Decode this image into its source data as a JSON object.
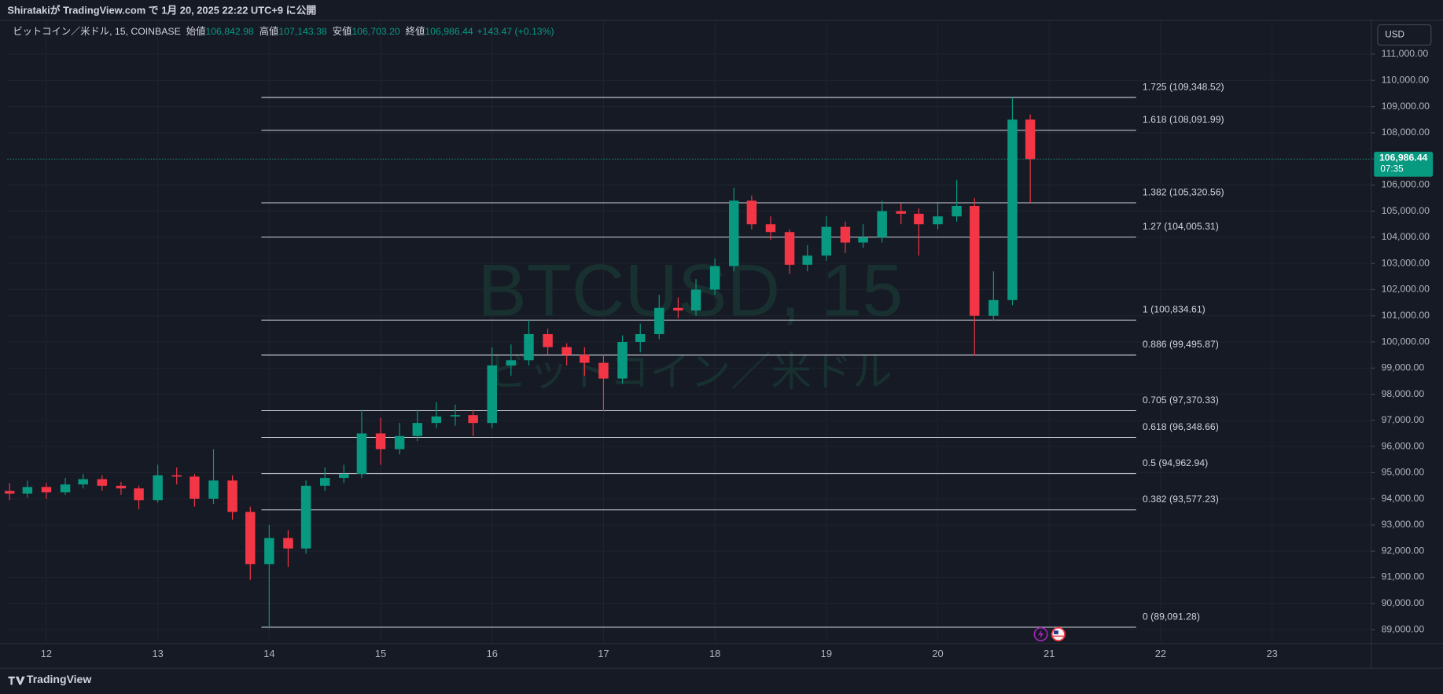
{
  "header": "Shiratakiが TradingView.com で 1月 20, 2025 22:22 UTC+9 に公開",
  "footer": "TradingView",
  "currency_button": "USD",
  "chart_data": {
    "type": "candlestick",
    "legend": {
      "symbol": "ビットコイン／米ドル, 15, COINBASE",
      "open_label": "始値",
      "open": "106,842.98",
      "high_label": "高値",
      "high": "107,143.38",
      "low_label": "安値",
      "low": "106,703.20",
      "close_label": "終値",
      "close": "106,986.44",
      "change": "+143.47 (+0.13%)"
    },
    "watermark": {
      "symbol": "BTCUSD, 15",
      "name": "ビットコイン／米ドル"
    },
    "up_color": "#089981",
    "down_color": "#f23645",
    "grid": true,
    "xlim": [
      11.65,
      23.89
    ],
    "xticks": [
      12,
      13,
      14,
      15,
      16,
      17,
      18,
      19,
      20,
      21,
      22,
      23
    ],
    "ylim": [
      88470,
      112300
    ],
    "yticks": [
      {
        "value": 89000,
        "label": "89,000.00"
      },
      {
        "value": 90000,
        "label": "90,000.00"
      },
      {
        "value": 91000,
        "label": "91,000.00"
      },
      {
        "value": 92000,
        "label": "92,000.00"
      },
      {
        "value": 93000,
        "label": "93,000.00"
      },
      {
        "value": 94000,
        "label": "94,000.00"
      },
      {
        "value": 95000,
        "label": "95,000.00"
      },
      {
        "value": 96000,
        "label": "96,000.00"
      },
      {
        "value": 97000,
        "label": "97,000.00"
      },
      {
        "value": 98000,
        "label": "98,000.00"
      },
      {
        "value": 99000,
        "label": "99,000.00"
      },
      {
        "value": 100000,
        "label": "100,000.00"
      },
      {
        "value": 101000,
        "label": "101,000.00"
      },
      {
        "value": 102000,
        "label": "102,000.00"
      },
      {
        "value": 103000,
        "label": "103,000.00"
      },
      {
        "value": 104000,
        "label": "104,000.00"
      },
      {
        "value": 105000,
        "label": "105,000.00"
      },
      {
        "value": 106000,
        "label": "106,000.00"
      },
      {
        "value": 107000,
        "label": "107,000.00"
      },
      {
        "value": 108000,
        "label": "108,000.00"
      },
      {
        "value": 109000,
        "label": "109,000.00"
      },
      {
        "value": 110000,
        "label": "110,000.00"
      },
      {
        "value": 111000,
        "label": "111,000.00"
      }
    ],
    "candles": {
      "x": [
        11.67,
        11.83,
        12,
        12.17,
        12.33,
        12.5,
        12.67,
        12.83,
        13,
        13.17,
        13.33,
        13.5,
        13.67,
        13.83,
        14,
        14.17,
        14.33,
        14.5,
        14.67,
        14.83,
        15,
        15.17,
        15.33,
        15.5,
        15.67,
        15.83,
        16,
        16.17,
        16.33,
        16.5,
        16.67,
        16.83,
        17,
        17.17,
        17.33,
        17.5,
        17.67,
        17.83,
        18,
        18.17,
        18.33,
        18.5,
        18.67,
        18.83,
        19,
        19.17,
        19.33,
        19.5,
        19.67,
        19.83,
        20,
        20.17,
        20.33,
        20.5,
        20.67,
        20.83
      ],
      "open": [
        94300,
        94200,
        94450,
        94250,
        94550,
        94750,
        94500,
        94400,
        93950,
        94900,
        94850,
        94000,
        94700,
        93500,
        91500,
        92500,
        92100,
        94500,
        94800,
        94950,
        96500,
        95900,
        96400,
        96900,
        97150,
        97200,
        96900,
        99100,
        99300,
        100300,
        99800,
        99500,
        99200,
        98600,
        100000,
        100300,
        101300,
        101200,
        102000,
        102900,
        105400,
        104500,
        104200,
        102950,
        103300,
        104400,
        103800,
        104000,
        105000,
        104900,
        104500,
        104800,
        105200,
        101000,
        101600,
        108500
      ],
      "high": [
        94600,
        94700,
        94600,
        94800,
        94950,
        94900,
        94650,
        94500,
        95300,
        95200,
        94950,
        95900,
        94900,
        93700,
        93000,
        92800,
        94700,
        95200,
        95300,
        97400,
        97100,
        96900,
        97400,
        97700,
        97600,
        97400,
        99800,
        99900,
        100850,
        100500,
        99950,
        99800,
        99500,
        100250,
        100700,
        101800,
        101700,
        102400,
        103200,
        105900,
        105600,
        104800,
        104300,
        103700,
        104800,
        104600,
        104500,
        105400,
        105300,
        105100,
        105300,
        106200,
        105500,
        102700,
        109350,
        108700
      ],
      "low": [
        93950,
        94050,
        94000,
        94150,
        94400,
        94300,
        94150,
        93600,
        93850,
        94550,
        93700,
        93800,
        93200,
        90900,
        89050,
        91400,
        91900,
        94300,
        94600,
        94800,
        95300,
        95700,
        96200,
        96700,
        96800,
        96400,
        96700,
        98700,
        99100,
        99500,
        99100,
        98700,
        97350,
        98400,
        99600,
        100100,
        100900,
        101000,
        101800,
        102700,
        104300,
        103900,
        102600,
        102700,
        103100,
        103400,
        103600,
        103800,
        104500,
        103300,
        104300,
        104600,
        99480,
        100800,
        101400,
        105320
      ],
      "close": [
        94200,
        94450,
        94250,
        94550,
        94750,
        94500,
        94400,
        93950,
        94900,
        94850,
        94000,
        94700,
        93500,
        91500,
        92500,
        92100,
        94500,
        94800,
        94950,
        96500,
        95900,
        96400,
        96900,
        97150,
        97200,
        96900,
        99100,
        99300,
        100300,
        99800,
        99500,
        99200,
        98600,
        100000,
        100300,
        101300,
        101200,
        102000,
        102900,
        105400,
        104500,
        104200,
        102950,
        103300,
        104400,
        103800,
        104000,
        105000,
        104900,
        104500,
        104800,
        105200,
        101000,
        101600,
        108500,
        106986.44
      ]
    },
    "fib_start": 13.93,
    "fib_end": 21.78,
    "fib_levels": [
      {
        "label": "1.725 (109,348.52)",
        "value": 109348.52
      },
      {
        "label": "1.618 (108,091.99)",
        "value": 108091.99
      },
      {
        "label": "1.382 (105,320.56)",
        "value": 105320.56
      },
      {
        "label": "1.27 (104,005.31)",
        "value": 104005.31
      },
      {
        "label": "1 (100,834.61)",
        "value": 100834.61
      },
      {
        "label": "0.886 (99,495.87)",
        "value": 99495.87
      },
      {
        "label": "0.705 (97,370.33)",
        "value": 97370.33
      },
      {
        "label": "0.618 (96,348.66)",
        "value": 96348.66
      },
      {
        "label": "0.5 (94,962.94)",
        "value": 94962.94
      },
      {
        "label": "0.382 (93,577.23)",
        "value": 93577.23
      },
      {
        "label": "0 (89,091.28)",
        "value": 89091.28
      }
    ],
    "last_price": {
      "value": 106986.44,
      "label": "106,986.44"
    },
    "countdown": "07:35"
  }
}
